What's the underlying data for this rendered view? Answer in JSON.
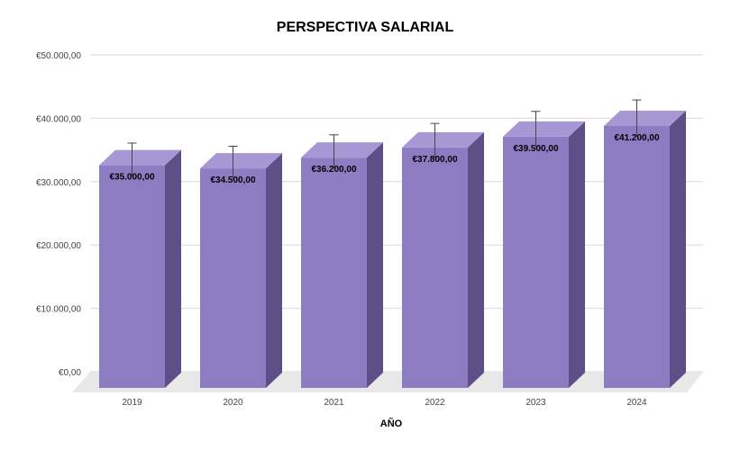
{
  "chart_data": {
    "type": "bar",
    "title": "PERSPECTIVA SALARIAL",
    "xlabel": "AÑO",
    "ylabel": "",
    "categories": [
      "2019",
      "2020",
      "2021",
      "2022",
      "2023",
      "2024"
    ],
    "series": [
      {
        "values": [
          35000,
          34500,
          36200,
          37800,
          39500,
          41200
        ],
        "value_labels": [
          "€35.000,00",
          "€34.500,00",
          "€36.200,00",
          "€37.800,00",
          "€39.500,00",
          "€41.200,00"
        ],
        "error_bar_tops": [
          38500,
          38000,
          39800,
          41600,
          43500,
          45300
        ]
      }
    ],
    "ylim": [
      0,
      50000
    ],
    "yticks": [
      0,
      10000,
      20000,
      30000,
      40000,
      50000
    ],
    "ytick_labels": [
      "€0,00",
      "€10.000,00",
      "€20.000,00",
      "€30.000,00",
      "€40.000,00",
      "€50.000,00"
    ],
    "grid": true,
    "legend": "none",
    "style": "3d",
    "colors": {
      "bar_front": "#8e7cc3",
      "bar_side": "#5e4f86",
      "bar_top": "#a797d4",
      "floor": "#e8e8e8",
      "grid": "#d9d9d9",
      "error_bar": "#444444",
      "text": "#000000",
      "tick_text": "#444444"
    }
  }
}
